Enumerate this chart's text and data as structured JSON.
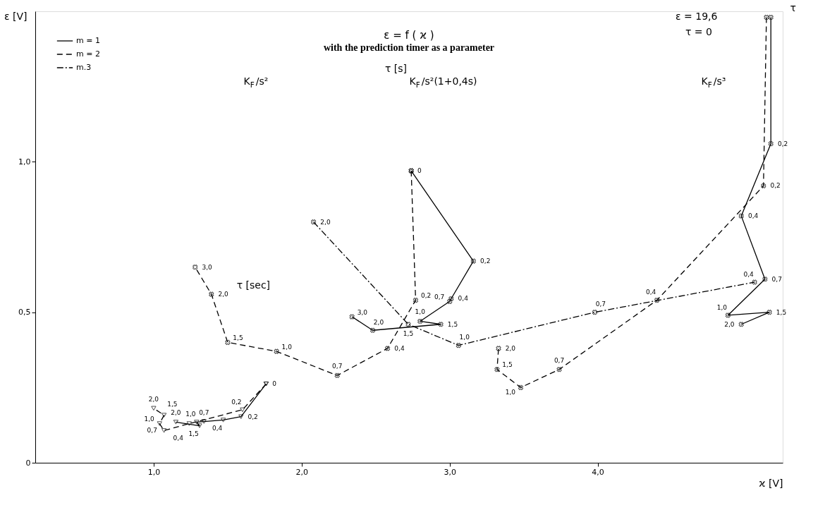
{
  "chart_data": {
    "type": "line",
    "title": "ε = f ( ϰ )",
    "subtitle": "with the prediction timer as a parameter",
    "xlabel": "ϰ [V]",
    "ylabel": "ε [V]",
    "xlim": [
      0.2,
      5.25
    ],
    "ylim": [
      0,
      1.5
    ],
    "xticks": [
      {
        "value": 1,
        "label": "1,0"
      },
      {
        "value": 2,
        "label": "2,0"
      },
      {
        "value": 3,
        "label": "3,0"
      },
      {
        "value": 4,
        "label": "4,0"
      }
    ],
    "yticks": [
      0,
      {
        "value": 0.5,
        "label": "0,5"
      },
      {
        "value": 1,
        "label": "1,0"
      }
    ],
    "grid": false,
    "legend": "top left",
    "series": [
      {
        "name": "m = 1",
        "color": "#000000",
        "line_style": "solid",
        "marker": "triangle",
        "x": [
          1.76,
          1.59,
          1.47,
          1.34,
          1.29,
          1.31,
          1.15
        ],
        "values": [
          0.262,
          0.153,
          0.142,
          0.137,
          0.135,
          0.123,
          0.135
        ]
      },
      {
        "name": "m = 2",
        "color": "#000000",
        "line_style": "dashed",
        "marker": "triangle",
        "x": [
          1.76,
          1.6,
          1.24,
          1.07,
          1.04,
          1.07,
          1.0
        ],
        "values": [
          0.262,
          0.176,
          0.13,
          0.107,
          0.13,
          0.158,
          0.181
        ]
      },
      {
        "color": "#000000",
        "line_style": "solid",
        "marker": "cross",
        "x": [
          2.74,
          3.16,
          3.01,
          3.0,
          2.8,
          2.94,
          2.48,
          2.34
        ],
        "values": [
          0.97,
          0.67,
          0.545,
          0.536,
          0.47,
          0.46,
          0.44,
          0.485
        ]
      },
      {
        "color": "#000000",
        "line_style": "dashed",
        "marker": "cross",
        "x": [
          2.74,
          2.77,
          2.58,
          2.24,
          1.83,
          1.5,
          1.39,
          1.28
        ],
        "values": [
          0.97,
          0.54,
          0.38,
          0.29,
          0.37,
          0.4,
          0.56,
          0.65
        ]
      },
      {
        "name": "m.3",
        "color": "#000000",
        "line_style": "dashdot",
        "marker": "cross",
        "x": [
          2.08,
          2.72,
          3.06,
          3.98,
          5.06
        ],
        "values": [
          0.8,
          0.46,
          0.39,
          0.5,
          0.6
        ]
      },
      {
        "color": "#000000",
        "line_style": "solid",
        "marker": "cross",
        "x": [
          5.17,
          5.17,
          4.97,
          5.13,
          4.88,
          5.16,
          4.97
        ],
        "values": [
          1.48,
          1.06,
          0.82,
          0.61,
          0.49,
          0.5,
          0.46
        ]
      },
      {
        "color": "#000000",
        "line_style": "dashed",
        "marker": "cross",
        "x": [
          5.14,
          5.12,
          4.4,
          3.74,
          3.48,
          3.32,
          3.33
        ],
        "values": [
          1.48,
          0.92,
          0.54,
          0.31,
          0.25,
          0.31,
          0.38
        ]
      }
    ],
    "annotations": [
      "K$_{F}$/s²",
      "τ [s]",
      "K$_{F}$/s²(1+0,4s)",
      "K$_{F}$/s³",
      "τ [sec]",
      "ε = 19,6",
      "τ = 0",
      "τ",
      {
        "text": "0",
        "x": 1.76,
        "y": 0.262
      },
      {
        "text": "0,2",
        "x": 1.59,
        "y": 0.153
      },
      {
        "text": "0,4",
        "x": 1.47,
        "y": 0.142
      },
      {
        "text": "0,7",
        "x": 1.34,
        "y": 0.137
      },
      {
        "text": "1,0",
        "x": 1.29,
        "y": 0.135
      },
      {
        "text": "1,5",
        "x": 1.31,
        "y": 0.123
      },
      {
        "text": "2,0",
        "x": 1.15,
        "y": 0.135
      },
      {
        "text": "0,2",
        "x": 1.6,
        "y": 0.176
      },
      {
        "text": "0,4",
        "x": 1.24,
        "y": 0.13
      },
      {
        "text": "0,7",
        "x": 1.07,
        "y": 0.107
      },
      {
        "text": "1,0",
        "x": 1.04,
        "y": 0.13
      },
      {
        "text": "1,5",
        "x": 1.07,
        "y": 0.158
      },
      {
        "text": "2,0",
        "x": 1.0,
        "y": 0.181
      },
      {
        "text": "0",
        "x": 2.74,
        "y": 0.97
      },
      {
        "text": "0,2",
        "x": 3.16,
        "y": 0.67
      },
      {
        "text": "0,4",
        "x": 3.01,
        "y": 0.545
      },
      {
        "text": "0,7",
        "x": 3.0,
        "y": 0.536
      },
      {
        "text": "1,0",
        "x": 2.8,
        "y": 0.47
      },
      {
        "text": "1,5",
        "x": 2.94,
        "y": 0.46
      },
      {
        "text": "2,0",
        "x": 2.48,
        "y": 0.44
      },
      {
        "text": "3,0",
        "x": 2.34,
        "y": 0.485
      },
      {
        "text": "0,2",
        "x": 2.77,
        "y": 0.54
      },
      {
        "text": "0,4",
        "x": 2.58,
        "y": 0.38
      },
      {
        "text": "0,7",
        "x": 2.24,
        "y": 0.29
      },
      {
        "text": "1,0",
        "x": 1.83,
        "y": 0.37
      },
      {
        "text": "1,5",
        "x": 1.5,
        "y": 0.4
      },
      {
        "text": "2,0",
        "x": 1.39,
        "y": 0.56
      },
      {
        "text": "3,0",
        "x": 1.28,
        "y": 0.65
      },
      {
        "text": "2,0",
        "x": 2.08,
        "y": 0.8
      },
      {
        "text": "1,5",
        "x": 2.72,
        "y": 0.46
      },
      {
        "text": "1,0",
        "x": 3.06,
        "y": 0.39
      },
      {
        "text": "0,7",
        "x": 3.98,
        "y": 0.5
      },
      {
        "text": "0,4",
        "x": 5.06,
        "y": 0.6
      },
      {
        "text": "0,2",
        "x": 5.17,
        "y": 1.06
      },
      {
        "text": "0,4",
        "x": 4.97,
        "y": 0.82
      },
      {
        "text": "0,7",
        "x": 5.13,
        "y": 0.61
      },
      {
        "text": "1,0",
        "x": 4.88,
        "y": 0.49
      },
      {
        "text": "1,5",
        "x": 5.16,
        "y": 0.5
      },
      {
        "text": "2,0",
        "x": 4.97,
        "y": 0.46
      },
      {
        "text": "0,2",
        "x": 5.12,
        "y": 0.92
      },
      {
        "text": "0,4",
        "x": 4.4,
        "y": 0.54
      },
      {
        "text": "0,7",
        "x": 3.74,
        "y": 0.31
      },
      {
        "text": "1,0",
        "x": 3.48,
        "y": 0.25
      },
      {
        "text": "1,5",
        "x": 3.32,
        "y": 0.31
      },
      {
        "text": "2,0",
        "x": 3.33,
        "y": 0.38
      }
    ]
  }
}
